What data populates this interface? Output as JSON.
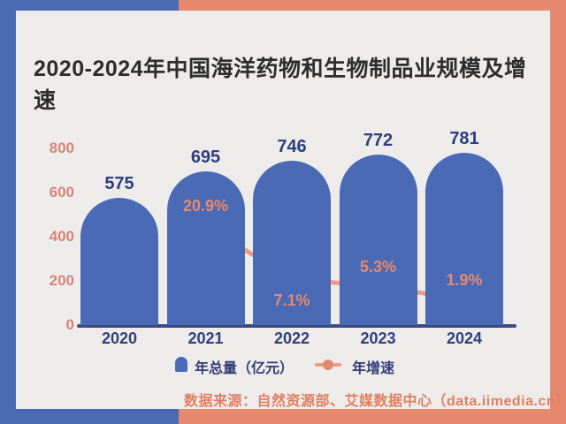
{
  "title": "2020-2024年中国海洋药物和生物制品业规模及增速",
  "frame": {
    "background_color": "#e6896e",
    "accent_color": "#4a6ab4",
    "card_color": "#edecea"
  },
  "chart_data": {
    "type": "bar",
    "categories": [
      "2020",
      "2021",
      "2022",
      "2023",
      "2024"
    ],
    "series": [
      {
        "name": "年总量（亿元）",
        "type": "bar",
        "values": [
          575,
          695,
          746,
          772,
          781
        ],
        "value_labels": [
          "575",
          "695",
          "746",
          "772",
          "781"
        ],
        "color": "#4a6ab5"
      },
      {
        "name": "年增速",
        "type": "line",
        "unit": "%",
        "values": [
          null,
          20.9,
          7.1,
          5.3,
          1.9
        ],
        "value_labels": [
          "",
          "20.9%",
          "7.1%",
          "5.3%",
          "1.9%"
        ],
        "label_positions": [
          null,
          "above",
          "below",
          "above",
          "above"
        ],
        "line_color": "#ec9c82",
        "dot_color": "#e28a6e"
      }
    ],
    "yticks": [
      0,
      200,
      400,
      600,
      800
    ],
    "ylim": [
      0,
      800
    ],
    "grid": false,
    "legend_position": "bottom",
    "ytick_color": "#d8837a",
    "bar_label_color": "#2e3e7e",
    "pct_label_color": "#e8886e",
    "axis_color": "#3a4a88"
  },
  "legend": {
    "bar_label": "年总量（亿元）",
    "line_label": "年增速"
  },
  "source": "数据来源：自然资源部、艾媒数据中心（data.iimedia.cn）"
}
